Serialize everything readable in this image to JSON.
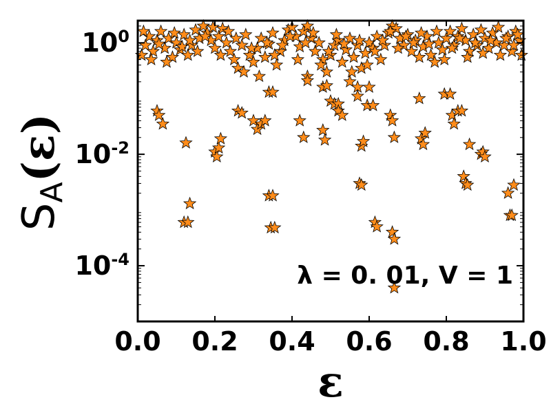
{
  "chart_data": {
    "type": "scatter",
    "marker": "star",
    "xlabel": "ε",
    "ylabel_main": "S",
    "ylabel_sub": "A",
    "ylabel_paren": "(ε)",
    "annotation": "λ = 0. 01, V = 1",
    "xlim": [
      0.0,
      1.0
    ],
    "ylim": [
      1e-05,
      2.5
    ],
    "yscale": "log",
    "grid": false,
    "x_ticks": [
      {
        "value": 0.0,
        "label": "0.0"
      },
      {
        "value": 0.2,
        "label": "0.2"
      },
      {
        "value": 0.4,
        "label": "0.4"
      },
      {
        "value": 0.6,
        "label": "0.6"
      },
      {
        "value": 0.8,
        "label": "0.8"
      },
      {
        "value": 1.0,
        "label": "1.0"
      }
    ],
    "y_ticks": [
      {
        "value": 1,
        "base": "10",
        "exp": "0"
      },
      {
        "value": 0.01,
        "base": "10",
        "exp": "-2"
      },
      {
        "value": 0.0001,
        "base": "10",
        "exp": "-4"
      }
    ],
    "colors": {
      "marker_fill": "#ff8c1a",
      "marker_edge": "#000000",
      "axes": "#000000"
    },
    "points": [
      [
        0.01,
        0.6
      ],
      [
        0.02,
        0.9
      ],
      [
        0.03,
        1.3
      ],
      [
        0.04,
        0.7
      ],
      [
        0.05,
        1.1
      ],
      [
        0.06,
        1.6
      ],
      [
        0.07,
        0.8
      ],
      [
        0.08,
        1.2
      ],
      [
        0.09,
        0.55
      ],
      [
        0.1,
        1.0
      ],
      [
        0.11,
        0.75
      ],
      [
        0.12,
        1.4
      ],
      [
        0.13,
        0.6
      ],
      [
        0.14,
        0.9
      ],
      [
        0.15,
        1.7
      ],
      [
        0.16,
        1.2
      ],
      [
        0.17,
        2.0
      ],
      [
        0.18,
        1.5
      ],
      [
        0.19,
        1.1
      ],
      [
        0.2,
        0.8
      ],
      [
        0.21,
        1.3
      ],
      [
        0.22,
        1.8
      ],
      [
        0.23,
        1.0
      ],
      [
        0.24,
        0.7
      ],
      [
        0.25,
        0.5
      ],
      [
        0.26,
        0.35
      ],
      [
        0.27,
        0.9
      ],
      [
        0.28,
        1.4
      ],
      [
        0.29,
        0.6
      ],
      [
        0.3,
        0.45
      ],
      [
        0.31,
        0.8
      ],
      [
        0.32,
        1.2
      ],
      [
        0.33,
        0.55
      ],
      [
        0.34,
        0.95
      ],
      [
        0.35,
        1.5
      ],
      [
        0.36,
        0.4
      ],
      [
        0.37,
        0.7
      ],
      [
        0.38,
        1.1
      ],
      [
        0.39,
        1.7
      ],
      [
        0.4,
        1.9
      ],
      [
        0.41,
        1.3
      ],
      [
        0.42,
        0.85
      ],
      [
        0.43,
        1.6
      ],
      [
        0.44,
        2.0
      ],
      [
        0.45,
        1.2
      ],
      [
        0.46,
        0.7
      ],
      [
        0.47,
        1.0
      ],
      [
        0.48,
        0.5
      ],
      [
        0.49,
        0.3
      ],
      [
        0.5,
        0.6
      ],
      [
        0.51,
        0.9
      ],
      [
        0.52,
        1.1
      ],
      [
        0.53,
        0.45
      ],
      [
        0.54,
        0.75
      ],
      [
        0.55,
        1.2
      ],
      [
        0.56,
        0.55
      ],
      [
        0.57,
        0.9
      ],
      [
        0.58,
        0.35
      ],
      [
        0.59,
        0.65
      ],
      [
        0.6,
        1.0
      ],
      [
        0.61,
        0.8
      ],
      [
        0.62,
        1.3
      ],
      [
        0.63,
        0.5
      ],
      [
        0.64,
        0.9
      ],
      [
        0.65,
        1.5
      ],
      [
        0.66,
        2.0
      ],
      [
        0.67,
        1.8
      ],
      [
        0.68,
        1.2
      ],
      [
        0.69,
        0.9
      ],
      [
        0.7,
        1.4
      ],
      [
        0.71,
        0.7
      ],
      [
        0.72,
        1.1
      ],
      [
        0.73,
        0.55
      ],
      [
        0.74,
        0.85
      ],
      [
        0.75,
        1.3
      ],
      [
        0.76,
        0.6
      ],
      [
        0.77,
        0.45
      ],
      [
        0.78,
        1.0
      ],
      [
        0.79,
        0.75
      ],
      [
        0.8,
        1.2
      ],
      [
        0.81,
        1.6
      ],
      [
        0.82,
        0.9
      ],
      [
        0.83,
        1.3
      ],
      [
        0.84,
        1.8
      ],
      [
        0.85,
        1.1
      ],
      [
        0.86,
        0.7
      ],
      [
        0.87,
        1.4
      ],
      [
        0.88,
        0.9
      ],
      [
        0.89,
        1.7
      ],
      [
        0.9,
        1.2
      ],
      [
        0.91,
        0.8
      ],
      [
        0.92,
        1.5
      ],
      [
        0.93,
        1.0
      ],
      [
        0.94,
        0.6
      ],
      [
        0.95,
        0.9
      ],
      [
        0.96,
        1.3
      ],
      [
        0.97,
        0.7
      ],
      [
        0.98,
        1.6
      ],
      [
        0.99,
        1.1
      ],
      [
        0.995,
        0.6
      ],
      [
        0.015,
        1.6
      ],
      [
        0.035,
        0.5
      ],
      [
        0.055,
        0.95
      ],
      [
        0.075,
        0.45
      ],
      [
        0.095,
        1.5
      ],
      [
        0.115,
        0.85
      ],
      [
        0.135,
        1.1
      ],
      [
        0.155,
        0.7
      ],
      [
        0.175,
        1.3
      ],
      [
        0.195,
        1.9
      ],
      [
        0.215,
        0.6
      ],
      [
        0.235,
        1.6
      ],
      [
        0.255,
        1.2
      ],
      [
        0.275,
        0.3
      ],
      [
        0.295,
        0.8
      ],
      [
        0.315,
        0.25
      ],
      [
        0.335,
        1.0
      ],
      [
        0.355,
        0.6
      ],
      [
        0.375,
        0.9
      ],
      [
        0.395,
        1.3
      ],
      [
        0.415,
        0.5
      ],
      [
        0.435,
        1.0
      ],
      [
        0.455,
        1.5
      ],
      [
        0.475,
        0.4
      ],
      [
        0.495,
        0.7
      ],
      [
        0.515,
        1.4
      ],
      [
        0.535,
        0.95
      ],
      [
        0.555,
        0.3
      ],
      [
        0.575,
        1.1
      ],
      [
        0.595,
        0.4
      ],
      [
        0.615,
        0.7
      ],
      [
        0.635,
        1.1
      ],
      [
        0.655,
        1.6
      ],
      [
        0.675,
        0.8
      ],
      [
        0.695,
        1.3
      ],
      [
        0.715,
        1.0
      ],
      [
        0.735,
        1.5
      ],
      [
        0.755,
        0.95
      ],
      [
        0.775,
        1.6
      ],
      [
        0.795,
        0.5
      ],
      [
        0.815,
        0.8
      ],
      [
        0.835,
        1.2
      ],
      [
        0.855,
        0.55
      ],
      [
        0.875,
        1.0
      ],
      [
        0.895,
        0.65
      ],
      [
        0.915,
        1.1
      ],
      [
        0.935,
        1.9
      ],
      [
        0.955,
        1.2
      ],
      [
        0.975,
        0.9
      ],
      [
        0.985,
        1.4
      ],
      [
        0.05,
        0.06
      ],
      [
        0.055,
        0.05
      ],
      [
        0.065,
        0.035
      ],
      [
        0.125,
        0.016
      ],
      [
        0.2,
        0.011
      ],
      [
        0.205,
        0.009
      ],
      [
        0.21,
        0.013
      ],
      [
        0.215,
        0.019
      ],
      [
        0.26,
        0.06
      ],
      [
        0.27,
        0.055
      ],
      [
        0.3,
        0.04
      ],
      [
        0.31,
        0.028
      ],
      [
        0.32,
        0.035
      ],
      [
        0.33,
        0.04
      ],
      [
        0.34,
        0.13
      ],
      [
        0.35,
        0.13
      ],
      [
        0.42,
        0.04
      ],
      [
        0.43,
        0.02
      ],
      [
        0.44,
        0.25
      ],
      [
        0.44,
        0.21
      ],
      [
        0.48,
        0.16
      ],
      [
        0.48,
        0.027
      ],
      [
        0.485,
        0.018
      ],
      [
        0.49,
        0.17
      ],
      [
        0.5,
        0.09
      ],
      [
        0.51,
        0.08
      ],
      [
        0.52,
        0.08
      ],
      [
        0.52,
        0.06
      ],
      [
        0.53,
        0.05
      ],
      [
        0.55,
        0.2
      ],
      [
        0.57,
        0.16
      ],
      [
        0.57,
        0.11
      ],
      [
        0.58,
        0.014
      ],
      [
        0.585,
        0.017
      ],
      [
        0.595,
        0.075
      ],
      [
        0.6,
        0.16
      ],
      [
        0.61,
        0.075
      ],
      [
        0.655,
        0.05
      ],
      [
        0.66,
        0.04
      ],
      [
        0.665,
        0.02
      ],
      [
        0.73,
        0.1
      ],
      [
        0.735,
        0.019
      ],
      [
        0.74,
        0.015
      ],
      [
        0.745,
        0.024
      ],
      [
        0.795,
        0.12
      ],
      [
        0.81,
        0.12
      ],
      [
        0.815,
        0.05
      ],
      [
        0.82,
        0.035
      ],
      [
        0.83,
        0.06
      ],
      [
        0.84,
        0.06
      ],
      [
        0.86,
        0.015
      ],
      [
        0.89,
        0.01
      ],
      [
        0.895,
        0.011
      ],
      [
        0.9,
        0.009
      ],
      [
        0.12,
        0.0006
      ],
      [
        0.13,
        0.0006
      ],
      [
        0.135,
        0.0013
      ],
      [
        0.34,
        0.0018
      ],
      [
        0.35,
        0.0018
      ],
      [
        0.345,
        0.00048
      ],
      [
        0.355,
        0.00048
      ],
      [
        0.575,
        0.003
      ],
      [
        0.58,
        0.0028
      ],
      [
        0.615,
        0.0006
      ],
      [
        0.62,
        0.0005
      ],
      [
        0.66,
        0.0004
      ],
      [
        0.665,
        0.0003
      ],
      [
        0.665,
        4e-05
      ],
      [
        0.845,
        0.004
      ],
      [
        0.85,
        0.003
      ],
      [
        0.855,
        0.0028
      ],
      [
        0.96,
        0.002
      ],
      [
        0.965,
        0.0008
      ],
      [
        0.97,
        0.0008
      ],
      [
        0.975,
        0.0028
      ]
    ]
  }
}
